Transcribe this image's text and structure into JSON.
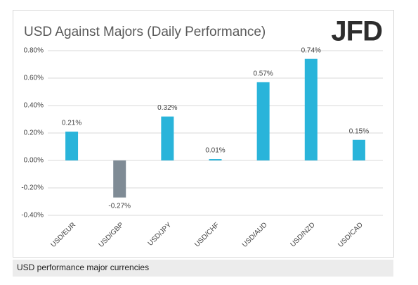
{
  "chart_data": {
    "type": "bar",
    "title": "USD Against Majors (Daily Performance)",
    "logo": "JFD",
    "categories": [
      "USD/EUR",
      "USD/GBP",
      "USD/JPY",
      "USD/CHF",
      "USD/AUD",
      "USD/NZD",
      "USD/CAD"
    ],
    "values": [
      0.21,
      -0.27,
      0.32,
      0.01,
      0.57,
      0.74,
      0.15
    ],
    "value_labels": [
      "0.21%",
      "-0.27%",
      "0.32%",
      "0.01%",
      "0.57%",
      "0.74%",
      "0.15%"
    ],
    "colors": [
      "#29b4da",
      "#7f8b95",
      "#29b4da",
      "#29b4da",
      "#29b4da",
      "#29b4da",
      "#29b4da"
    ],
    "ylim": [
      -0.4,
      0.8
    ],
    "yticks": [
      {
        "value": -0.4,
        "label": "-0.40%"
      },
      {
        "value": -0.2,
        "label": "-0.20%"
      },
      {
        "value": 0,
        "label": "0.00%"
      },
      {
        "value": 0.2,
        "label": "0.20%"
      },
      {
        "value": 0.4,
        "label": "0.40%"
      },
      {
        "value": 0.6,
        "label": "0.60%"
      },
      {
        "value": 0.8,
        "label": "0.80%"
      }
    ],
    "grid": true,
    "caption": "USD performance major currencies"
  }
}
